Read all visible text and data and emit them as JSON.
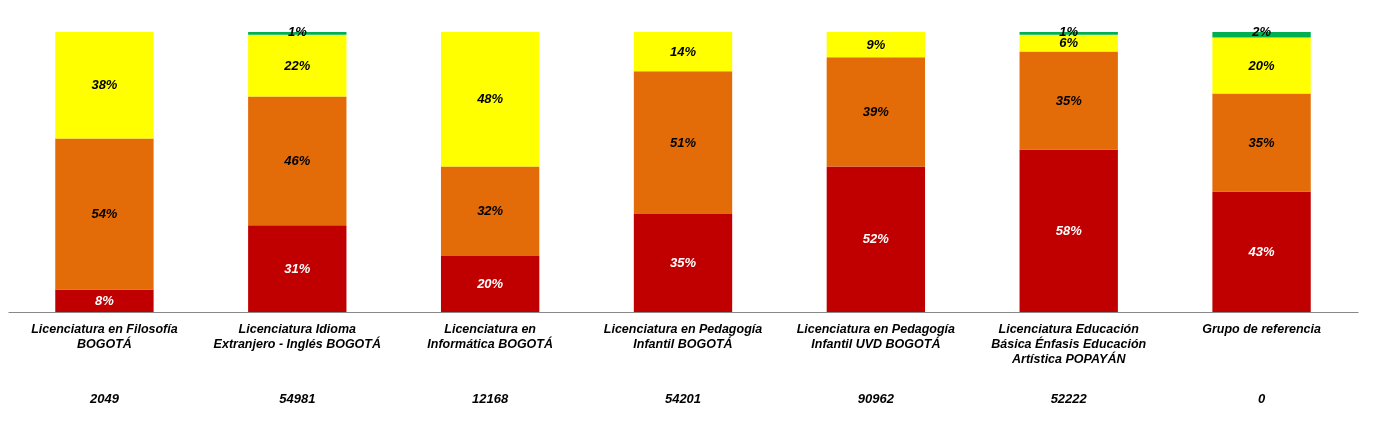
{
  "chart_data": {
    "type": "bar",
    "stacked": true,
    "grid": false,
    "tick_labels": "x",
    "ylim": [
      0,
      100
    ],
    "categories": [
      "Licenciatura en Filosofía BOGOTÁ",
      "Licenciatura Idioma Extranjero - Inglés BOGOTÁ",
      "Licenciatura en Informática BOGOTÁ",
      "Licenciatura en Pedagogía Infantil BOGOTÁ",
      "Licenciatura en  Pedagogía Infantil UVD BOGOTÁ",
      "Licenciatura Educación Básica Énfasis Educación Artística POPAYÁN",
      "Grupo de referencia"
    ],
    "series": [
      {
        "color": "#c00000",
        "values": [
          8,
          31,
          20,
          35,
          52,
          58,
          43
        ],
        "value_labels": [
          "8%",
          "31%",
          "20%",
          "35%",
          "52%",
          "58%",
          "43%"
        ]
      },
      {
        "color": "#e36c09",
        "values": [
          54,
          46,
          32,
          51,
          39,
          35,
          35
        ],
        "value_labels": [
          "54%",
          "46%",
          "32%",
          "51%",
          "39%",
          "35%",
          "35%"
        ]
      },
      {
        "color": "#ffff00",
        "values": [
          38,
          22,
          48,
          14,
          9,
          6,
          20
        ],
        "value_labels": [
          "38%",
          "22%",
          "48%",
          "14%",
          "9%",
          "6%",
          "20%"
        ]
      },
      {
        "color": "#00b050",
        "values": [
          null,
          1,
          null,
          null,
          null,
          1,
          2
        ],
        "value_labels": [
          null,
          "1%",
          null,
          null,
          null,
          "1%",
          "2%"
        ]
      }
    ],
    "annotations": [
      "2049",
      "54981",
      "12168",
      "54201",
      "90962",
      "52222",
      "0"
    ]
  }
}
